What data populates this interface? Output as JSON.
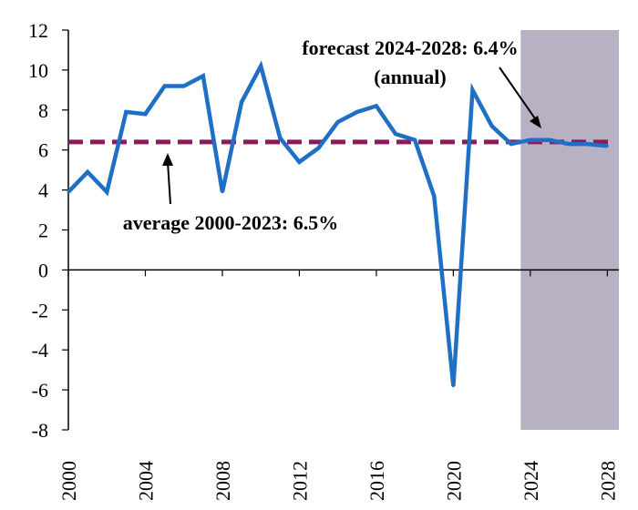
{
  "chart_data": {
    "type": "line",
    "x": [
      2000,
      2001,
      2002,
      2003,
      2004,
      2005,
      2006,
      2007,
      2008,
      2009,
      2010,
      2011,
      2012,
      2013,
      2014,
      2015,
      2016,
      2017,
      2018,
      2019,
      2020,
      2021,
      2022,
      2023,
      2024,
      2025,
      2026,
      2027,
      2028
    ],
    "series": [
      {
        "values": [
          3.9,
          4.9,
          3.9,
          7.9,
          7.8,
          9.2,
          9.2,
          9.7,
          3.9,
          8.4,
          10.2,
          6.6,
          5.4,
          6.1,
          7.4,
          7.9,
          8.2,
          6.8,
          6.5,
          3.7,
          -5.8,
          9.0,
          7.2,
          6.3,
          6.5,
          6.5,
          6.3,
          6.3,
          6.2
        ],
        "color": "#1f6fc5"
      }
    ],
    "reference_line": {
      "value": 6.4,
      "color": "#8b1a5c",
      "style": "dashed"
    },
    "forecast_shading": {
      "from": 2023.5,
      "to": 2028.6,
      "color": "#b8b0c3"
    },
    "xlim": [
      2000,
      2028.6
    ],
    "ylim": [
      -8,
      12
    ],
    "y_ticks": [
      12,
      10,
      8,
      6,
      4,
      2,
      0,
      -2,
      -4,
      -6,
      -8
    ],
    "x_ticks": [
      2000,
      2004,
      2008,
      2012,
      2016,
      2020,
      2024,
      2028
    ],
    "annotations": {
      "forecast_line1": "forecast 2024-2028: 6.4%",
      "forecast_line2": "(annual)",
      "average": "average 2000-2023: 6.5%"
    },
    "grid": false,
    "legend": "none"
  }
}
